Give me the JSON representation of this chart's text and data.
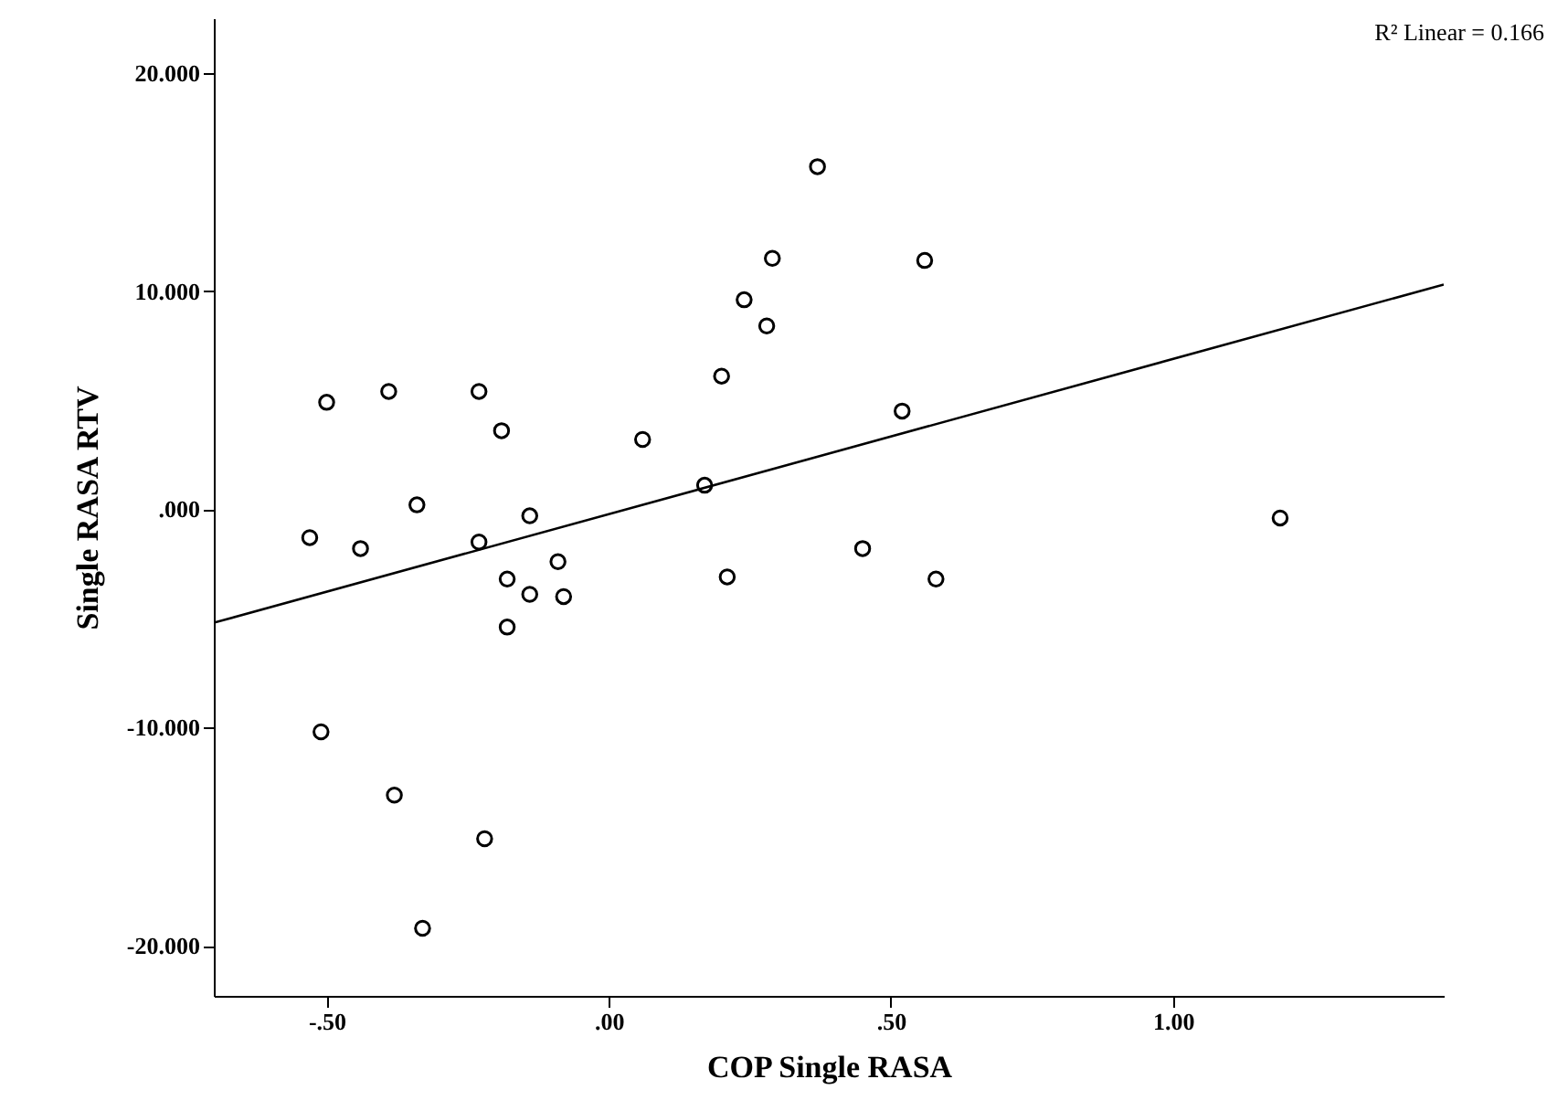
{
  "chart_data": {
    "type": "scatter",
    "xlabel": "COP Single RASA",
    "ylabel": "Single RASA RTV",
    "annotations": [
      "R² Linear = 0.166"
    ],
    "xlim": [
      -0.7,
      1.48
    ],
    "xticks": [
      {
        "value": -0.5,
        "label": "-.50"
      },
      {
        "value": 0,
        "label": ".00"
      },
      {
        "value": 0.5,
        "label": ".50"
      },
      {
        "value": 1.0,
        "label": "1.00"
      }
    ],
    "ylim": [
      -22.3,
      22.5
    ],
    "yticks": [
      {
        "value": -20,
        "label": "-20.000"
      },
      {
        "value": -10,
        "label": "-10.000"
      },
      {
        "value": 0,
        "label": ".000"
      },
      {
        "value": 10,
        "label": "10.000"
      },
      {
        "value": 20,
        "label": "20.000"
      }
    ],
    "grid": false,
    "series": [
      {
        "marker": "circle",
        "color": "#000000",
        "x": [
          -0.53,
          -0.5,
          -0.51,
          -0.44,
          -0.39,
          -0.38,
          -0.34,
          -0.33,
          -0.23,
          -0.23,
          -0.22,
          -0.19,
          -0.18,
          -0.18,
          -0.14,
          -0.14,
          -0.09,
          -0.08,
          0.06,
          0.17,
          0.2,
          0.21,
          0.24,
          0.28,
          0.29,
          0.37,
          0.45,
          0.52,
          0.56,
          0.58,
          1.19
        ],
        "values": [
          -1.3,
          4.9,
          -10.2,
          -1.8,
          5.4,
          -13.1,
          0.2,
          -19.2,
          5.4,
          -1.5,
          -15.1,
          3.6,
          -3.2,
          -5.4,
          -3.9,
          -0.3,
          -2.4,
          -4.0,
          3.2,
          1.1,
          6.1,
          -3.1,
          9.6,
          8.4,
          11.5,
          15.7,
          -1.8,
          4.5,
          11.4,
          -3.2,
          -0.4
        ]
      },
      {
        "type": "line",
        "marker": "none",
        "line_style": "solid",
        "color": "#000000",
        "x": [
          -0.7,
          1.48
        ],
        "values": [
          -5.2,
          10.3
        ]
      }
    ]
  }
}
